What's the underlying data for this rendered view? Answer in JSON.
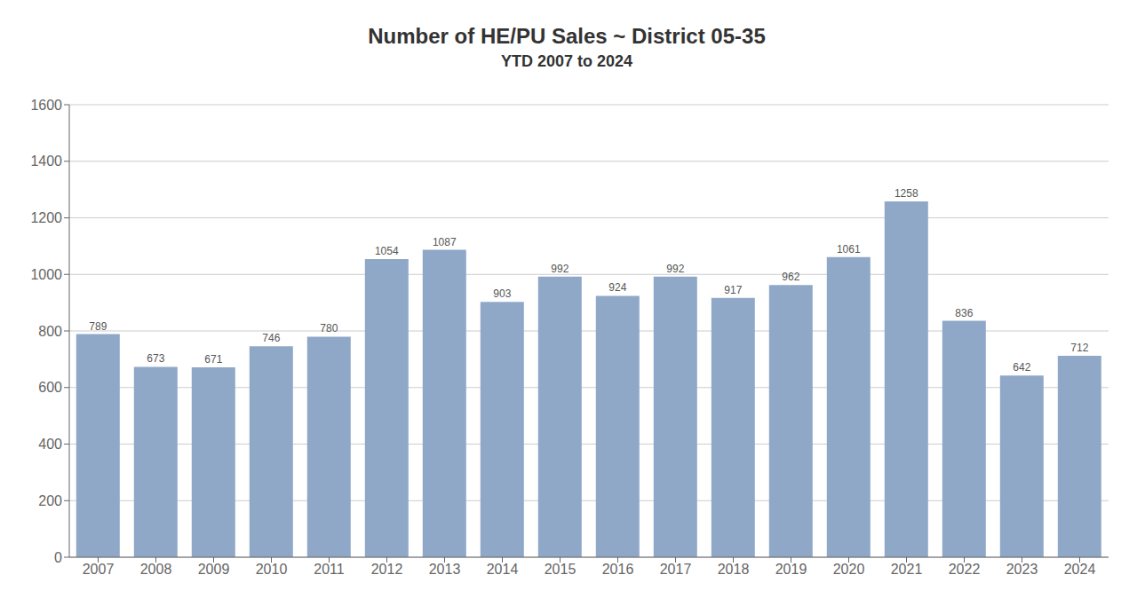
{
  "chart_data": {
    "type": "bar",
    "title": "Number of HE/PU Sales ~ District 05-35",
    "subtitle": "YTD 2007 to 2024",
    "categories": [
      "2007",
      "2008",
      "2009",
      "2010",
      "2011",
      "2012",
      "2013",
      "2014",
      "2015",
      "2016",
      "2017",
      "2018",
      "2019",
      "2020",
      "2021",
      "2022",
      "2023",
      "2024"
    ],
    "values": [
      789,
      673,
      671,
      746,
      780,
      1054,
      1087,
      903,
      992,
      924,
      992,
      917,
      962,
      1061,
      1258,
      836,
      642,
      712
    ],
    "color": "#8FA8C8",
    "ylim": [
      0,
      1600
    ],
    "yticks": [
      0,
      200,
      400,
      600,
      800,
      1000,
      1200,
      1400,
      1600
    ],
    "grid": true,
    "data_labels": true
  }
}
